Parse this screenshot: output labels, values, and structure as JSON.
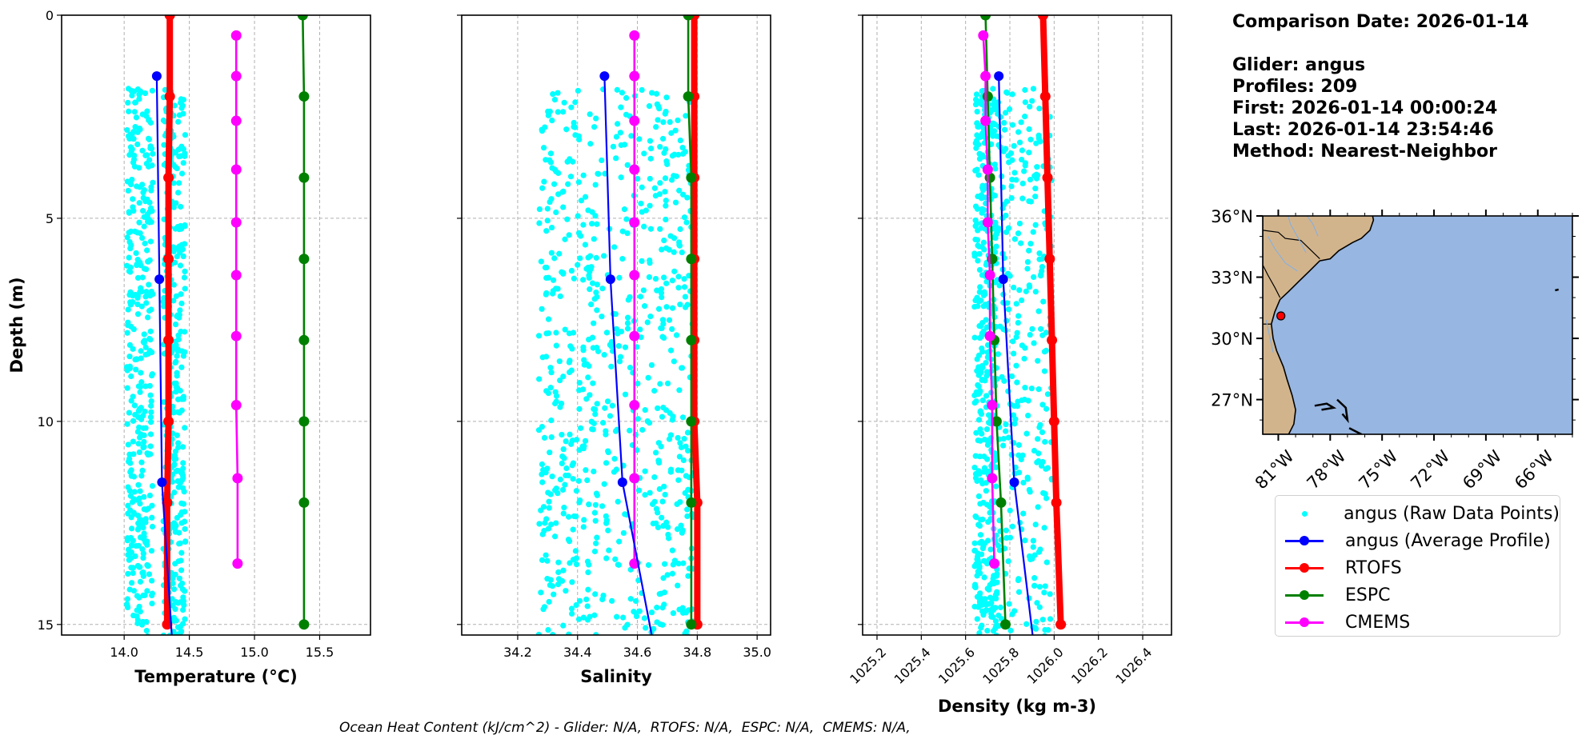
{
  "info": {
    "comparison_date": "Comparison Date: 2026-01-14",
    "glider": "Glider: angus",
    "profiles": "Profiles: 209",
    "first": "First: 2026-01-14 00:00:24",
    "last": "Last: 2026-01-14 23:54:46",
    "method": "Method: Nearest-Neighbor"
  },
  "footer": "Ocean Heat Content (kJ/cm^2) - Glider: N/A,  RTOFS: N/A,  ESPC: N/A,  CMEMS: N/A,",
  "colors": {
    "raw": "#00ffff",
    "glider": "#0000ff",
    "rtofs": "#ff0000",
    "espc": "#008000",
    "cmems": "#ff00ff",
    "land": "#d2b48c",
    "ocean": "#97b6e1",
    "grid": "#b0b0b0"
  },
  "legend": [
    {
      "key": "raw",
      "label": "angus (Raw Data Points)",
      "style": "dot"
    },
    {
      "key": "glider",
      "label": "angus (Average Profile)",
      "style": "line-marker"
    },
    {
      "key": "rtofs",
      "label": "RTOFS",
      "style": "line-marker"
    },
    {
      "key": "espc",
      "label": "ESPC",
      "style": "line-marker"
    },
    {
      "key": "cmems",
      "label": "CMEMS",
      "style": "line-marker"
    }
  ],
  "chart_data": [
    {
      "type": "line",
      "name": "temperature",
      "xlabel": "Temperature (°C)",
      "ylabel": "Depth (m)",
      "xlim": [
        13.52,
        15.89
      ],
      "ylim": [
        15.26,
        0
      ],
      "y_inverted": true,
      "grid": true,
      "xticks": [
        14.0,
        14.5,
        15.0,
        15.5
      ],
      "xtick_labels": [
        "14.0",
        "14.5",
        "15.0",
        "15.5"
      ],
      "yticks": [
        0,
        5,
        10,
        15
      ],
      "ytick_labels": [
        "0",
        "5",
        "10",
        "15"
      ],
      "raw_points": {
        "depth_range": [
          1.8,
          15.3
        ],
        "x_range": [
          14.0,
          14.47
        ],
        "count_approx": 1000
      },
      "series": [
        {
          "name": "angus (Average Profile)",
          "key": "glider",
          "depth": [
            1.5,
            6.5,
            11.5,
            16.5
          ],
          "values": [
            14.25,
            14.27,
            14.29,
            14.39
          ]
        },
        {
          "name": "RTOFS",
          "key": "rtofs",
          "depth": [
            0,
            2,
            4,
            6,
            8,
            10,
            12,
            15
          ],
          "values": [
            14.35,
            14.35,
            14.34,
            14.34,
            14.34,
            14.34,
            14.33,
            14.33
          ]
        },
        {
          "name": "ESPC",
          "key": "espc",
          "depth": [
            0,
            2,
            4,
            6,
            8,
            10,
            12,
            15
          ],
          "values": [
            15.37,
            15.38,
            15.38,
            15.38,
            15.38,
            15.38,
            15.38,
            15.38
          ]
        },
        {
          "name": "CMEMS",
          "key": "cmems",
          "depth": [
            0.5,
            1.5,
            2.6,
            3.8,
            5.1,
            6.4,
            7.9,
            9.6,
            11.4,
            13.5
          ],
          "values": [
            14.86,
            14.86,
            14.86,
            14.86,
            14.86,
            14.86,
            14.86,
            14.86,
            14.87,
            14.87
          ]
        }
      ]
    },
    {
      "type": "line",
      "name": "salinity",
      "xlabel": "Salinity",
      "ylabel": "",
      "xlim": [
        34.013,
        35.045
      ],
      "ylim": [
        15.26,
        0
      ],
      "y_inverted": true,
      "grid": true,
      "xticks": [
        34.2,
        34.4,
        34.6,
        34.8,
        35.0
      ],
      "xtick_labels": [
        "34.2",
        "34.4",
        "34.6",
        "34.8",
        "35.0"
      ],
      "yticks": [
        0,
        5,
        10,
        15
      ],
      "ytick_labels": [],
      "raw_points": {
        "depth_range": [
          1.8,
          15.3
        ],
        "x_range": [
          34.27,
          34.79
        ],
        "count_approx": 1000
      },
      "series": [
        {
          "name": "angus (Average Profile)",
          "key": "glider",
          "depth": [
            1.5,
            6.5,
            11.5,
            16.5
          ],
          "values": [
            34.49,
            34.51,
            34.55,
            34.68
          ]
        },
        {
          "name": "RTOFS",
          "key": "rtofs",
          "depth": [
            0,
            2,
            4,
            6,
            8,
            10,
            12,
            15
          ],
          "values": [
            34.79,
            34.79,
            34.79,
            34.79,
            34.79,
            34.79,
            34.8,
            34.8
          ]
        },
        {
          "name": "ESPC",
          "key": "espc",
          "depth": [
            0,
            2,
            4,
            6,
            8,
            10,
            12,
            15
          ],
          "values": [
            34.77,
            34.77,
            34.78,
            34.78,
            34.78,
            34.78,
            34.78,
            34.78
          ]
        },
        {
          "name": "CMEMS",
          "key": "cmems",
          "depth": [
            0.5,
            1.5,
            2.6,
            3.8,
            5.1,
            6.4,
            7.9,
            9.6,
            11.4,
            13.5
          ],
          "values": [
            34.59,
            34.59,
            34.59,
            34.59,
            34.59,
            34.59,
            34.59,
            34.59,
            34.59,
            34.59
          ]
        }
      ]
    },
    {
      "type": "line",
      "name": "density",
      "xlabel": "Density (kg m-3)",
      "ylabel": "",
      "xlim": [
        1025.135,
        1026.53
      ],
      "ylim": [
        15.26,
        0
      ],
      "y_inverted": true,
      "grid": true,
      "xticks": [
        1025.2,
        1025.4,
        1025.6,
        1025.8,
        1026.0,
        1026.2,
        1026.4
      ],
      "xtick_labels": [
        "1025.2",
        "1025.4",
        "1025.6",
        "1025.8",
        "1026.0",
        "1026.2",
        "1026.4"
      ],
      "xtick_rotation": 45,
      "yticks": [
        0,
        5,
        10,
        15
      ],
      "ytick_labels": [],
      "raw_points": {
        "depth_range": [
          1.8,
          15.3
        ],
        "x_range": [
          1025.64,
          1025.99
        ],
        "count_approx": 1000
      },
      "series": [
        {
          "name": "angus (Average Profile)",
          "key": "glider",
          "depth": [
            1.5,
            6.5,
            11.5,
            16.5
          ],
          "values": [
            1025.75,
            1025.77,
            1025.82,
            1025.93
          ]
        },
        {
          "name": "RTOFS",
          "key": "rtofs",
          "depth": [
            0,
            2,
            4,
            6,
            8,
            10,
            12,
            15
          ],
          "values": [
            1025.95,
            1025.96,
            1025.97,
            1025.98,
            1025.99,
            1026.0,
            1026.01,
            1026.03
          ]
        },
        {
          "name": "ESPC",
          "key": "espc",
          "depth": [
            0,
            2,
            4,
            6,
            8,
            10,
            12,
            15
          ],
          "values": [
            1025.69,
            1025.7,
            1025.71,
            1025.72,
            1025.73,
            1025.74,
            1025.76,
            1025.78
          ]
        },
        {
          "name": "CMEMS",
          "key": "cmems",
          "depth": [
            0.5,
            1.5,
            2.6,
            3.8,
            5.1,
            6.4,
            7.9,
            9.6,
            11.4,
            13.5
          ],
          "values": [
            1025.68,
            1025.69,
            1025.69,
            1025.7,
            1025.7,
            1025.71,
            1025.71,
            1025.72,
            1025.72,
            1025.73
          ]
        }
      ]
    },
    {
      "type": "map",
      "name": "location-map",
      "lon_range": [
        -81.9,
        -64.0
      ],
      "lat_range": [
        25.3,
        36.0
      ],
      "lat_ticks": [
        36,
        33,
        30,
        27
      ],
      "lat_tick_labels": [
        "36°N",
        "33°N",
        "30°N",
        "27°N"
      ],
      "lon_ticks": [
        -81,
        -78,
        -75,
        -72,
        -69,
        -66
      ],
      "lon_tick_labels": [
        "81°W",
        "78°W",
        "75°W",
        "72°W",
        "69°W",
        "66°W"
      ],
      "glider_position": {
        "lon": -80.85,
        "lat": 31.1
      }
    }
  ]
}
